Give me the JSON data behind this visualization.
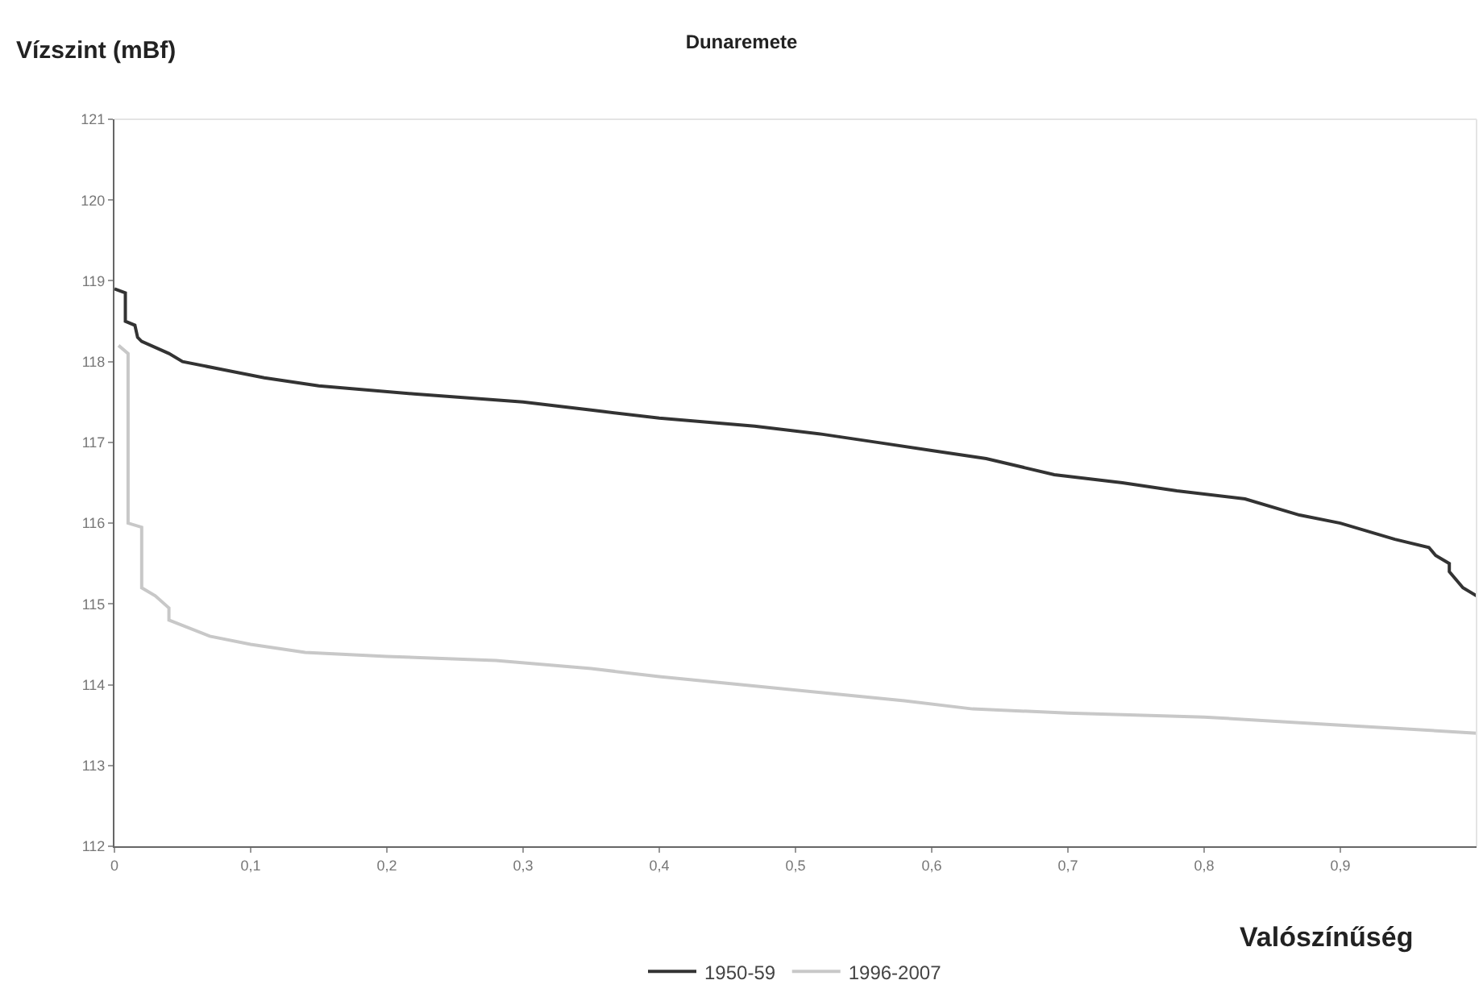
{
  "chart_data": {
    "type": "line",
    "title": "Dunaremete",
    "xlabel": "Valószínűség",
    "ylabel": "Vízszint (mBf)",
    "xlim": [
      0,
      1
    ],
    "xticks": [
      0,
      {
        "value": 0.1,
        "label": "0,1"
      },
      {
        "value": 0.2,
        "label": "0,2"
      },
      {
        "value": 0.3,
        "label": "0,3"
      },
      {
        "value": 0.4,
        "label": "0,4"
      },
      {
        "value": 0.5,
        "label": "0,5"
      },
      {
        "value": 0.6,
        "label": "0,6"
      },
      {
        "value": 0.7,
        "label": "0,7"
      },
      {
        "value": 0.8,
        "label": "0,8"
      },
      {
        "value": 0.9,
        "label": "0,9"
      }
    ],
    "ylim": [
      112,
      121
    ],
    "yticks": [
      112,
      113,
      114,
      115,
      116,
      117,
      118,
      119,
      120,
      121
    ],
    "grid": false,
    "legend": "bottom",
    "series": [
      {
        "name": "1950-59",
        "color": "#333333",
        "x": [
          0,
          0.008,
          0.008,
          0.015,
          0.017,
          0.02,
          0.04,
          0.05,
          0.08,
          0.11,
          0.15,
          0.22,
          0.3,
          0.35,
          0.4,
          0.47,
          0.52,
          0.56,
          0.6,
          0.64,
          0.69,
          0.74,
          0.78,
          0.83,
          0.87,
          0.9,
          0.94,
          0.965,
          0.97,
          0.98,
          0.98,
          0.99,
          1.0
        ],
        "values": [
          118.9,
          118.85,
          118.5,
          118.45,
          118.3,
          118.25,
          118.1,
          118.0,
          117.9,
          117.8,
          117.7,
          117.6,
          117.5,
          117.4,
          117.3,
          117.2,
          117.1,
          117.0,
          116.9,
          116.8,
          116.6,
          116.5,
          116.4,
          116.3,
          116.1,
          116.0,
          115.8,
          115.7,
          115.6,
          115.5,
          115.4,
          115.2,
          115.1
        ]
      },
      {
        "name": "1996-2007",
        "color": "#c8c8c8",
        "x": [
          0.003,
          0.01,
          0.01,
          0.02,
          0.02,
          0.03,
          0.04,
          0.04,
          0.07,
          0.1,
          0.14,
          0.2,
          0.28,
          0.35,
          0.4,
          0.46,
          0.52,
          0.58,
          0.63,
          0.7,
          0.8,
          0.9,
          1.0
        ],
        "values": [
          118.2,
          118.1,
          116.0,
          115.95,
          115.2,
          115.1,
          114.95,
          114.8,
          114.6,
          114.5,
          114.4,
          114.35,
          114.3,
          114.2,
          114.1,
          114.0,
          113.9,
          113.8,
          113.7,
          113.65,
          113.6,
          113.5,
          113.4
        ]
      }
    ]
  }
}
